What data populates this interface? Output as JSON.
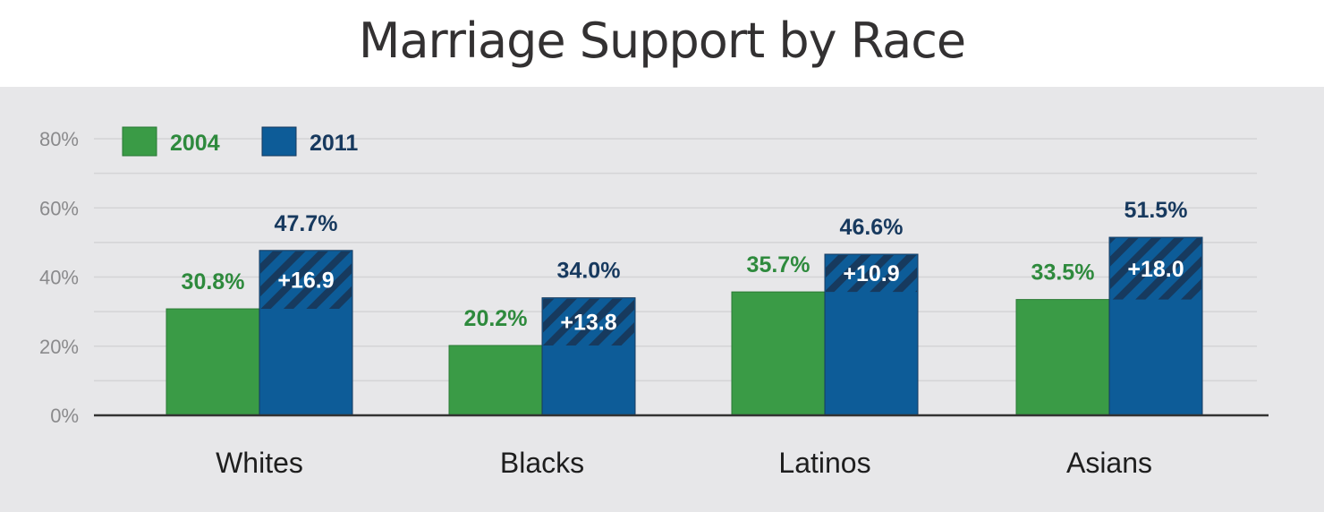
{
  "chart_data": {
    "type": "bar",
    "title": "Marriage Support by Race",
    "categories": [
      "Whites",
      "Blacks",
      "Latinos",
      "Asians"
    ],
    "series": [
      {
        "name": "2004",
        "values": [
          30.8,
          20.2,
          35.7,
          33.5
        ],
        "labels": [
          "30.8%",
          "20.2%",
          "35.7%",
          "33.5%"
        ],
        "color": "#3a9b46"
      },
      {
        "name": "2011",
        "values": [
          47.7,
          34.0,
          46.6,
          51.5
        ],
        "labels": [
          "47.7%",
          "34.0%",
          "46.6%",
          "51.5%"
        ],
        "color": "#0d5c98"
      }
    ],
    "change_labels": [
      "+16.9",
      "+13.8",
      "+10.9",
      "+18.0"
    ],
    "yticks": [
      "0%",
      "20%",
      "40%",
      "60%",
      "80%"
    ],
    "ylim": [
      0,
      80
    ],
    "grid": true,
    "legend": "top-left",
    "text_colors": {
      "2004": "#2e8a3d",
      "2011": "#17395e"
    }
  }
}
